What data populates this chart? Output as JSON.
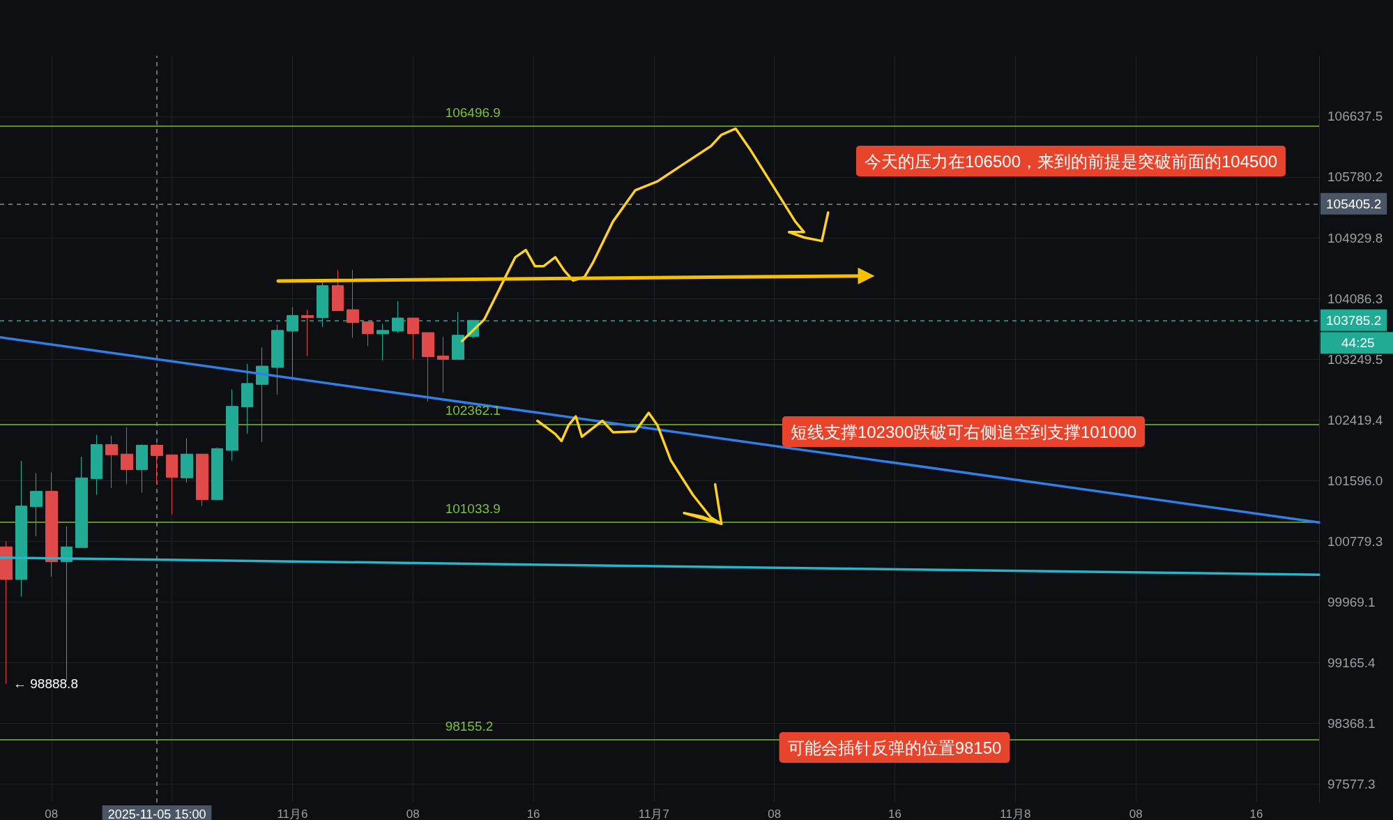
{
  "chart_data": {
    "type": "candlestick",
    "xlim": [
      "2025-11-05T04:35",
      "2025-11-08T20:10"
    ],
    "xticks": [
      {
        "value": "2025-11-05T08:00",
        "label": "08"
      },
      {
        "value": "2025-11-05T16:00",
        "label": null
      },
      {
        "value": "2025-11-06T00:00",
        "label": "11月6"
      },
      {
        "value": "2025-11-06T08:00",
        "label": "08"
      },
      {
        "value": "2025-11-06T16:00",
        "label": "16"
      },
      {
        "value": "2025-11-07T00:00",
        "label": "11月7"
      },
      {
        "value": "2025-11-07T08:00",
        "label": "08"
      },
      {
        "value": "2025-11-07T16:00",
        "label": "16"
      },
      {
        "value": "2025-11-08T00:00",
        "label": "11月8"
      },
      {
        "value": "2025-11-08T08:00",
        "label": "08"
      },
      {
        "value": "2025-11-08T16:00",
        "label": "16"
      }
    ],
    "ylim": [
      97340,
      107500
    ],
    "yticks": [
      106637.5,
      105780.2,
      104929.8,
      104086.3,
      103249.5,
      102419.4,
      {
        "value": 101596,
        "label": "101596.0"
      },
      100779.3,
      99969.1,
      99165.4,
      98368.1,
      97577.3
    ],
    "log": "y",
    "grid": true,
    "series": [
      {
        "type": "candlestick",
        "x": [
          "2025-11-05T05:00",
          "2025-11-05T06:00",
          "2025-11-05T07:00",
          "2025-11-05T08:00",
          "2025-11-05T09:00",
          "2025-11-05T10:00",
          "2025-11-05T11:00",
          "2025-11-05T12:00",
          "2025-11-05T13:00",
          "2025-11-05T14:00",
          "2025-11-05T15:00",
          "2025-11-05T16:00",
          "2025-11-05T17:00",
          "2025-11-05T18:00",
          "2025-11-05T19:00",
          "2025-11-05T20:00",
          "2025-11-05T21:00",
          "2025-11-05T22:00",
          "2025-11-05T23:00",
          "2025-11-06T00:00",
          "2025-11-06T01:00",
          "2025-11-06T02:00",
          "2025-11-06T03:00",
          "2025-11-06T04:00",
          "2025-11-06T05:00",
          "2025-11-06T06:00",
          "2025-11-06T07:00",
          "2025-11-06T08:00",
          "2025-11-06T09:00",
          "2025-11-06T10:00",
          "2025-11-06T11:00",
          "2025-11-06T12:00"
        ],
        "ohlc": [
          [
            100706,
            100779,
            98888.8,
            100270
          ],
          [
            100270,
            101864,
            100042,
            101254
          ],
          [
            101245,
            101698,
            100846,
            101453
          ],
          [
            101453,
            101707,
            100306,
            100506
          ],
          [
            100506,
            100979,
            98930,
            100706
          ],
          [
            100697,
            101920,
            100697,
            101634
          ],
          [
            101624,
            102216,
            101406,
            102086
          ],
          [
            102086,
            102206,
            101496,
            101946
          ],
          [
            101956,
            102318,
            101548,
            101744
          ],
          [
            101744,
            102086,
            101434,
            102076
          ],
          [
            102076,
            102095,
            101548,
            101936
          ],
          [
            101946,
            101946,
            101140,
            101641
          ],
          [
            101634,
            102170,
            101568,
            101956
          ],
          [
            101956,
            101956,
            101254,
            101340
          ],
          [
            101340,
            102049,
            101340,
            102030
          ],
          [
            102006,
            102838,
            101867,
            102605
          ],
          [
            102597,
            103186,
            102233,
            102918
          ],
          [
            102904,
            103412,
            102119,
            103155
          ],
          [
            103137,
            103725,
            102764,
            103646
          ],
          [
            103636,
            103969,
            102957,
            103852
          ],
          [
            103852,
            103932,
            103294,
            103821
          ],
          [
            103821,
            104314,
            103695,
            104265
          ],
          [
            104265,
            104483,
            103918,
            103918
          ],
          [
            103932,
            104483,
            103543,
            103754
          ],
          [
            103764,
            103764,
            103430,
            103599
          ],
          [
            103599,
            103735,
            103232,
            103646
          ],
          [
            103636,
            104050,
            103608,
            103817
          ],
          [
            103817,
            103817,
            103252,
            103599
          ],
          [
            103616,
            103616,
            102671,
            103283
          ],
          [
            103294,
            103558,
            102793,
            103247
          ],
          [
            103247,
            103900,
            103247,
            103580
          ],
          [
            103561,
            103785.2,
            103540,
            103785.2
          ]
        ],
        "colors": [
          "#e04a4a",
          "#22ab94",
          "#22ab94",
          "#e04a4a",
          "#22ab94",
          "#22ab94",
          "#22ab94",
          "#e04a4a",
          "#e04a4a",
          "#22ab94",
          "#e04a4a",
          "#e04a4a",
          "#22ab94",
          "#e04a4a",
          "#22ab94",
          "#22ab94",
          "#22ab94",
          "#22ab94",
          "#22ab94",
          "#22ab94",
          "#e04a4a",
          "#22ab94",
          "#e04a4a",
          "#e04a4a",
          "#e04a4a",
          "#22ab94",
          "#22ab94",
          "#e04a4a",
          "#e04a4a",
          "#e04a4a",
          "#22ab94",
          "#22ab94"
        ]
      },
      {
        "type": "line",
        "color": "#2f80e6",
        "x": [
          "2025-11-05T04:35",
          "2025-11-08T20:10"
        ],
        "values": [
          103552,
          101034
        ]
      },
      {
        "type": "line",
        "color": "#26b5c9",
        "x": [
          "2025-11-05T04:35",
          "2025-11-08T20:10"
        ],
        "values": [
          100561,
          100334
        ]
      },
      {
        "type": "line",
        "color": "#f5c000",
        "marker": "triangle",
        "x": [
          "2025-11-05T23:03",
          "2025-11-07T14:06"
        ],
        "values": [
          104330,
          104400
        ]
      },
      {
        "type": "line",
        "color": "#ffd21f",
        "x": [
          "2025-11-06T11:16",
          "2025-11-06T12:44",
          "2025-11-06T14:12",
          "2025-11-06T14:48",
          "2025-11-06T15:30",
          "2025-11-06T16:06",
          "2025-11-06T16:41",
          "2025-11-06T17:27",
          "2025-11-06T18:03",
          "2025-11-06T18:38",
          "2025-11-06T19:24",
          "2025-11-06T19:59",
          "2025-11-06T21:17",
          "2025-11-06T22:46",
          "2025-11-07T00:14",
          "2025-11-07T02:00",
          "2025-11-07T03:47",
          "2025-11-07T04:29",
          "2025-11-07T05:26",
          "2025-11-07T06:26",
          "2025-11-07T07:54",
          "2025-11-07T09:23",
          "2025-11-07T09:58",
          "2025-11-07T08:58",
          "2025-11-07T09:58",
          "2025-11-07T11:09",
          "2025-11-07T11:34"
        ],
        "values": [
          103500,
          103796,
          104410,
          104660,
          104760,
          104535,
          104535,
          104660,
          104473,
          104336,
          104385,
          104597,
          105158,
          105596,
          105720,
          105968,
          106216,
          106377,
          106464,
          106155,
          105658,
          105158,
          105010,
          105010,
          104935,
          104885,
          105283
        ]
      },
      {
        "type": "line",
        "color": "#ffd21f",
        "x": [
          "2025-11-06T16:16",
          "2025-11-06T17:27",
          "2025-11-06T17:52",
          "2025-11-06T18:20",
          "2025-11-06T18:49",
          "2025-11-06T19:13",
          "2025-11-06T19:49",
          "2025-11-06T20:35",
          "2025-11-06T21:17",
          "2025-11-06T22:46",
          "2025-11-06T23:39",
          "2025-11-07T00:14",
          "2025-11-07T01:07",
          "2025-11-07T02:36",
          "2025-11-07T03:47",
          "2025-11-07T04:29",
          "2025-11-07T02:00",
          "2025-11-07T03:11",
          "2025-11-07T04:29",
          "2025-11-07T04:04"
        ],
        "values": [
          102408,
          102228,
          102133,
          102348,
          102468,
          102192,
          102288,
          102408,
          102252,
          102264,
          102516,
          102348,
          101873,
          101402,
          101099,
          101014,
          101160,
          101111,
          101014,
          101546
        ]
      }
    ],
    "ref_lines": [
      {
        "axis": "y",
        "value": 106496.9,
        "label": "106496.9",
        "color": "#7cc234"
      },
      {
        "axis": "y",
        "value": 102362.1,
        "label": "102362.1",
        "color": "#7cc234"
      },
      {
        "axis": "y",
        "value": 101033.9,
        "label": "101033.9",
        "color": "#7cc234"
      },
      {
        "axis": "y",
        "value": 98155.2,
        "label": "98155.2",
        "color": "#7cc234"
      },
      {
        "axis": "x",
        "value": "2025-11-05T15:00",
        "label": "2025-11-05 15:00",
        "color": "#8a8f98",
        "line_style": "dashed"
      },
      {
        "axis": "y",
        "value": 105405.2,
        "label": "105405.2",
        "color": "#8a8f98",
        "line_style": "dashed"
      },
      {
        "axis": "y",
        "value": 103785.2,
        "label": "103785.2",
        "color": "#22ab94",
        "line_style": "dashed"
      }
    ],
    "annotations": [
      "今天的压力在106500，来到的前提是突破前面的104500",
      "短线支撑102300跌破可右侧追空到支撑101000",
      "可能会插针反弹的位置98150",
      "44:25",
      {
        "text": "← 98888.8",
        "x": "2025-11-05T05:00",
        "y": 98888.8
      }
    ]
  }
}
